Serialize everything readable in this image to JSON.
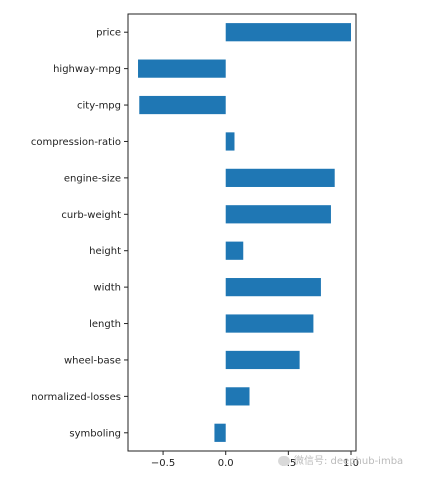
{
  "chart_data": {
    "type": "bar",
    "orientation": "horizontal",
    "categories": [
      "price",
      "highway-mpg",
      "city-mpg",
      "compression-ratio",
      "engine-size",
      "curb-weight",
      "height",
      "width",
      "length",
      "wheel-base",
      "normalized-losses",
      "symboling"
    ],
    "values": [
      1.0,
      -0.7,
      -0.69,
      0.07,
      0.87,
      0.84,
      0.14,
      0.76,
      0.7,
      0.59,
      0.19,
      -0.09
    ],
    "xlim": [
      -0.78,
      1.04
    ],
    "xticks": [
      -0.5,
      0.0,
      0.5,
      1.0
    ],
    "xtick_labels": [
      "−0.5",
      "0.0",
      "0.5",
      "1.0"
    ],
    "bar_color": "#1f77b4",
    "grid": false,
    "title": "",
    "xlabel": "",
    "ylabel": ""
  },
  "watermark": "微信号: deephub-imba"
}
